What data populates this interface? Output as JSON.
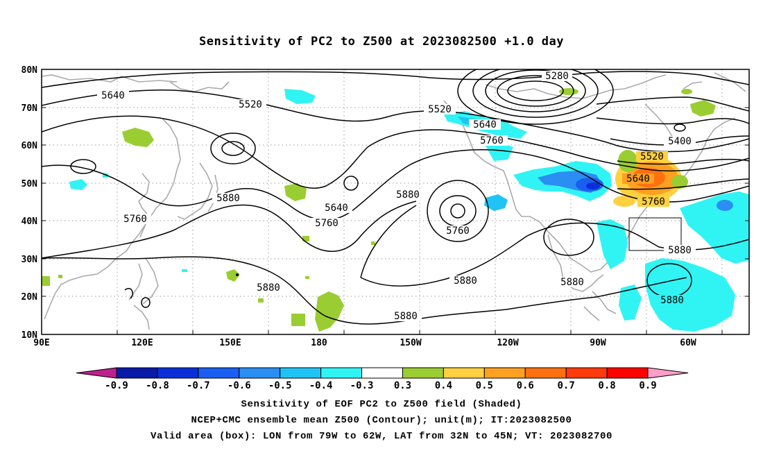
{
  "title": "Sensitivity of PC2 to Z500 at 2023082500 +1.0 day",
  "map": {
    "lat_ticks": [
      "80N",
      "70N",
      "60N",
      "50N",
      "40N",
      "30N",
      "20N",
      "10N"
    ],
    "lon_ticks": [
      "90E",
      "120E",
      "150E",
      "180",
      "150W",
      "120W",
      "90W",
      "60W"
    ],
    "contour_labels": [
      "5280",
      "5400",
      "5520",
      "5520",
      "5520",
      "5640",
      "5640",
      "5640",
      "5640",
      "5760",
      "5760",
      "5760",
      "5760",
      "5760",
      "5880",
      "5880",
      "5880",
      "5880",
      "5880",
      "5880",
      "5880",
      "5880"
    ],
    "valid_box": {
      "lon_from": "79W",
      "lon_to": "62W",
      "lat_from": "32N",
      "lat_to": "45N"
    }
  },
  "colorbar": {
    "labels": [
      "-0.9",
      "-0.8",
      "-0.7",
      "-0.6",
      "-0.5",
      "-0.4",
      "-0.3",
      "0.3",
      "0.4",
      "0.5",
      "0.6",
      "0.7",
      "0.8",
      "0.9"
    ],
    "colors": [
      "#c0208f",
      "#0a1aa8",
      "#0a2fd8",
      "#1a5ef2",
      "#2a8ef2",
      "#20c4f4",
      "#30f4f4",
      "#ffffff",
      "#9acd32",
      "#ffd040",
      "#ffa020",
      "#ff7010",
      "#ff3a0c",
      "#ff0000",
      "#ff9ec8"
    ]
  },
  "captions": [
    "Sensitivity of EOF PC2 to Z500 field (Shaded)",
    "NCEP+CMC ensemble mean Z500 (Contour); unit(m); IT:2023082500",
    "Valid area (box): LON from 79W to 62W, LAT from 32N to 45N; VT: 2023082700"
  ]
}
